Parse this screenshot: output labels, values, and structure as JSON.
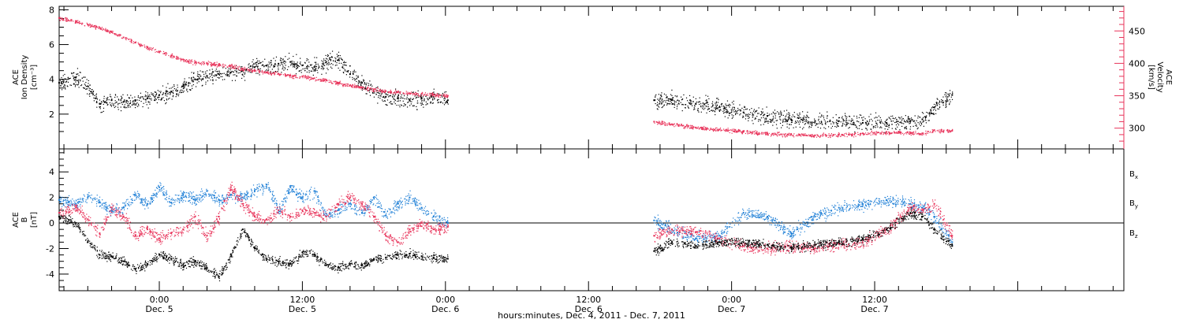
{
  "chart_data": [
    {
      "type": "scatter",
      "panel": "top",
      "ylabel_left": [
        "ACE",
        "Ion Density",
        "[cm⁻³]"
      ],
      "ylabel_right": [
        "ACE",
        "Velocity",
        "[km/s]"
      ],
      "y_ticks_left": [
        "2",
        "4",
        "6",
        "8"
      ],
      "y_ticks_right": [
        "300",
        "350",
        "400",
        "450"
      ],
      "ylim_left": [
        0,
        8.2
      ],
      "ylim_right": [
        268,
        488
      ],
      "colors": {
        "density": "#000000",
        "velocity": "#e8335a"
      },
      "series": [
        {
          "name": "Ion Density",
          "axis": "left",
          "color": "#000000",
          "segments": [
            {
              "x": [
                -8.4,
                -7,
                -6,
                -5,
                -4,
                -3,
                -2,
                -1,
                0,
                1,
                2,
                3,
                4,
                5,
                6,
                7,
                8,
                9,
                10,
                11,
                12,
                13,
                14,
                15,
                16,
                17,
                18,
                19,
                20,
                21,
                22,
                23,
                24.2
              ],
              "y": [
                3.8,
                4.1,
                3.6,
                2.6,
                2.8,
                2.7,
                2.8,
                2.9,
                3.1,
                3.3,
                3.6,
                4.0,
                4.2,
                4.3,
                4.4,
                4.5,
                4.7,
                4.8,
                4.9,
                5.0,
                4.8,
                4.7,
                5.0,
                5.1,
                4.3,
                3.8,
                3.3,
                3.0,
                2.9,
                2.8,
                2.9,
                3.0,
                2.8
              ]
            },
            {
              "x": [
                41.5,
                43,
                45,
                47,
                49,
                51,
                53,
                55,
                57,
                59,
                61,
                63,
                64,
                65,
                66.5
              ],
              "y": [
                2.8,
                2.8,
                2.6,
                2.4,
                2.1,
                1.9,
                1.7,
                1.6,
                1.6,
                1.5,
                1.5,
                1.6,
                1.7,
                2.4,
                3.1
              ]
            }
          ]
        },
        {
          "name": "Velocity",
          "axis": "right",
          "color": "#e8335a",
          "segments": [
            {
              "x": [
                -8.4,
                -7,
                -6,
                -5,
                -4,
                -3,
                -2,
                -1,
                0,
                1,
                2,
                3,
                4,
                5,
                6,
                7,
                8,
                9,
                10,
                11,
                12,
                13,
                14,
                15,
                16,
                17,
                18,
                19,
                20,
                21,
                22,
                23,
                24.2
              ],
              "y": [
                470,
                465,
                460,
                455,
                448,
                440,
                432,
                425,
                418,
                412,
                406,
                402,
                400,
                398,
                396,
                392,
                389,
                386,
                384,
                381,
                380,
                377,
                374,
                370,
                366,
                363,
                360,
                357,
                356,
                354,
                353,
                352,
                350
              ]
            },
            {
              "x": [
                41.5,
                43,
                45,
                47,
                49,
                51,
                53,
                55,
                57,
                59,
                61,
                63,
                64,
                65,
                66.5
              ],
              "y": [
                310,
                306,
                301,
                298,
                295,
                292,
                290,
                289,
                290,
                292,
                294,
                293,
                292,
                297,
                296
              ]
            }
          ]
        }
      ]
    },
    {
      "type": "scatter",
      "panel": "bottom",
      "ylabel": [
        "ACE",
        "B",
        "[nT]"
      ],
      "y_ticks": [
        "-4",
        "-2",
        "0",
        "2",
        "4"
      ],
      "ylim": [
        -5.3,
        5.8
      ],
      "zero_line": true,
      "legend": [
        {
          "label": "B",
          "sub": "x",
          "color": "#000000"
        },
        {
          "label": "B",
          "sub": "y",
          "color": "#1e7fd6"
        },
        {
          "label": "B",
          "sub": "z",
          "color": "#e8335a"
        }
      ],
      "series": [
        {
          "name": "Bx",
          "color": "#000000",
          "segments": [
            {
              "x": [
                -8.4,
                -7,
                -6,
                -5,
                -4,
                -3,
                -2,
                -1,
                0,
                1,
                2,
                3,
                4,
                5,
                6,
                7,
                8,
                9,
                10,
                11,
                12,
                13,
                14,
                15,
                16,
                17,
                18,
                19,
                20,
                21,
                22,
                23,
                24.2
              ],
              "y": [
                0.5,
                0,
                -1.5,
                -2.5,
                -2.6,
                -3.0,
                -3.6,
                -3.2,
                -2.5,
                -2.8,
                -3.3,
                -3.0,
                -3.5,
                -4.2,
                -2.5,
                -0.5,
                -2.0,
                -2.8,
                -3.0,
                -3.2,
                -2.3,
                -2.5,
                -3.3,
                -3.5,
                -3.2,
                -3.3,
                -2.8,
                -2.7,
                -2.5,
                -2.4,
                -2.6,
                -2.7,
                -2.8
              ]
            },
            {
              "x": [
                41.5,
                43,
                45,
                47,
                49,
                51,
                53,
                55,
                57,
                59,
                61,
                63,
                64,
                65,
                66.5
              ],
              "y": [
                -2.2,
                -1.5,
                -1.8,
                -1.5,
                -1.5,
                -1.7,
                -1.9,
                -1.7,
                -1.5,
                -1.2,
                -0.5,
                0.8,
                0.5,
                -0.5,
                -1.8
              ]
            }
          ]
        },
        {
          "name": "By",
          "color": "#1e7fd6",
          "segments": [
            {
              "x": [
                -8.4,
                -7,
                -6,
                -5,
                -4,
                -3,
                -2,
                -1,
                0,
                1,
                2,
                3,
                4,
                5,
                6,
                7,
                8,
                9,
                10,
                11,
                12,
                13,
                14,
                15,
                16,
                17,
                18,
                19,
                20,
                21,
                22,
                23,
                24.2
              ],
              "y": [
                1.8,
                1.5,
                2.0,
                1.6,
                1.0,
                1.2,
                2.2,
                1.5,
                2.8,
                1.6,
                2.2,
                1.8,
                2.5,
                1.8,
                2.2,
                2.0,
                2.5,
                3.0,
                1.0,
                2.8,
                2.0,
                2.5,
                0.5,
                1.0,
                1.5,
                0.8,
                2.0,
                0.6,
                1.5,
                2.0,
                1.2,
                0.5,
                0
              ]
            },
            {
              "x": [
                41.5,
                43,
                45,
                47,
                49,
                51,
                53,
                55,
                57,
                59,
                61,
                63,
                64,
                65,
                66.5
              ],
              "y": [
                0.2,
                -0.5,
                -1.2,
                -1.0,
                0.8,
                0.5,
                -0.8,
                0.5,
                1.2,
                1.5,
                1.8,
                1.5,
                1.2,
                0.5,
                -1.5
              ]
            }
          ]
        },
        {
          "name": "Bz",
          "color": "#e8335a",
          "segments": [
            {
              "x": [
                -8.4,
                -7,
                -6,
                -5,
                -4,
                -3,
                -2,
                -1,
                0,
                1,
                2,
                3,
                4,
                5,
                6,
                7,
                8,
                9,
                10,
                11,
                12,
                13,
                14,
                15,
                16,
                17,
                18,
                19,
                20,
                21,
                22,
                23,
                24.2
              ],
              "y": [
                0.8,
                1.2,
                0.3,
                -0.8,
                1.2,
                0.5,
                -1.0,
                -0.5,
                -1.2,
                -0.8,
                -0.5,
                0.5,
                -1.0,
                0.5,
                2.8,
                1.5,
                0.5,
                0.3,
                1.0,
                0.5,
                1.0,
                0.8,
                0.5,
                1.5,
                2.0,
                1.5,
                0.5,
                -1.0,
                -1.5,
                -0.5,
                0,
                -0.5,
                -0.3
              ]
            },
            {
              "x": [
                41.5,
                43,
                45,
                47,
                49,
                51,
                53,
                55,
                57,
                59,
                61,
                63,
                64,
                65,
                66.5
              ],
              "y": [
                -1.0,
                -0.5,
                -0.7,
                -1.2,
                -1.8,
                -2.0,
                -1.8,
                -2.0,
                -1.6,
                -1.5,
                -0.5,
                1.2,
                1.0,
                1.5,
                -1.0
              ]
            }
          ]
        }
      ]
    }
  ],
  "x_axis": {
    "xlim": [
      -8.4,
      80.9
    ],
    "major_ticks": [
      {
        "x": 0,
        "time": "0:00",
        "day": "Dec. 5"
      },
      {
        "x": 12,
        "time": "12:00",
        "day": "Dec. 5"
      },
      {
        "x": 24,
        "time": "0:00",
        "day": "Dec. 6"
      },
      {
        "x": 36,
        "time": "12:00",
        "day": "Dec. 6"
      },
      {
        "x": 48,
        "time": "0:00",
        "day": "Dec. 7"
      },
      {
        "x": 60,
        "time": "12:00",
        "day": "Dec. 7"
      }
    ],
    "title": "hours:minutes, Dec.  4, 2011 - Dec. 7, 2011"
  }
}
